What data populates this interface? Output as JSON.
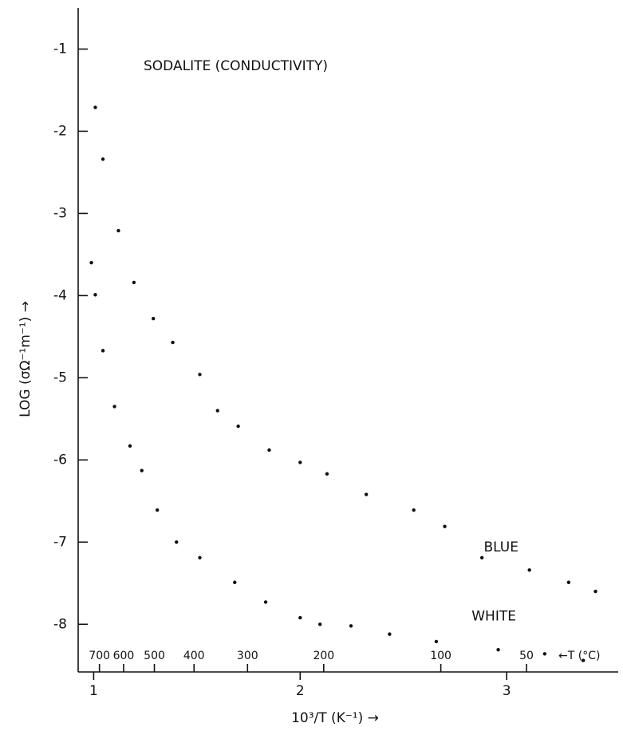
{
  "chart_data": {
    "type": "scatter",
    "title": "SODALITE (CONDUCTIVITY)",
    "x_label": "10³/T (K⁻¹) →",
    "y_label": "LOG (σΩ⁻¹m⁻¹) →",
    "t_axis_label": "←T (°C)",
    "xlim": [
      0.925,
      3.54
    ],
    "ylim": [
      -8.58,
      -0.5
    ],
    "xticks": [
      1,
      2,
      3
    ],
    "yticks": [
      -1,
      -2,
      -3,
      -4,
      -5,
      -6,
      -7,
      -8
    ],
    "t_ticks": [
      {
        "value": 1.028,
        "label": "700"
      },
      {
        "value": 1.145,
        "label": "600"
      },
      {
        "value": 1.294,
        "label": "500"
      },
      {
        "value": 1.486,
        "label": "400"
      },
      {
        "value": 1.745,
        "label": "300"
      },
      {
        "value": 2.114,
        "label": "200"
      },
      {
        "value": 2.681,
        "label": "100"
      },
      {
        "value": 3.096,
        "label": "50"
      }
    ],
    "series": [
      {
        "name": "BLUE",
        "color": "#111111",
        "x": [
          1.008,
          1.045,
          1.12,
          1.195,
          1.289,
          1.383,
          1.514,
          1.6,
          1.7,
          1.85,
          2.0,
          2.13,
          2.32,
          2.55,
          2.7,
          2.88,
          3.11,
          3.3,
          3.43
        ],
        "values": [
          -1.71,
          -2.34,
          -3.21,
          -3.84,
          -4.28,
          -4.57,
          -4.96,
          -5.4,
          -5.59,
          -5.88,
          -6.03,
          -6.17,
          -6.42,
          -6.61,
          -6.81,
          -7.19,
          -7.34,
          -7.49,
          -7.6
        ]
      },
      {
        "name": "WHITE",
        "color": "#111111",
        "x": [
          0.989,
          1.008,
          1.045,
          1.101,
          1.176,
          1.233,
          1.308,
          1.401,
          1.514,
          1.683,
          1.833,
          2.0,
          2.096,
          2.246,
          2.433,
          2.659,
          2.959,
          3.184,
          3.371
        ],
        "values": [
          -3.6,
          -3.99,
          -4.67,
          -5.35,
          -5.83,
          -6.13,
          -6.61,
          -7.0,
          -7.19,
          -7.49,
          -7.73,
          -7.92,
          -8.0,
          -8.02,
          -8.12,
          -8.21,
          -8.31,
          -8.36,
          -8.44
        ]
      }
    ]
  }
}
